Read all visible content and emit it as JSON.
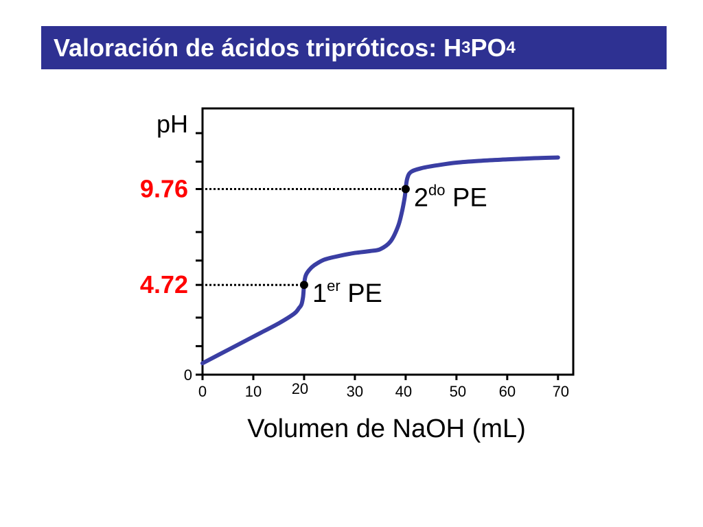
{
  "title": {
    "main": "Valoración de ácidos tripróticos: H",
    "sub1": "3",
    "mid": "PO",
    "sub2": "4"
  },
  "colors": {
    "banner": "#2e3192",
    "curve": "#3a3ea3",
    "highlight": "#ff0000",
    "axis": "#000000"
  },
  "chart_data": {
    "type": "line",
    "xlabel": "Volumen de NaOH (mL)",
    "ylabel": "pH",
    "xlim": [
      0,
      73
    ],
    "ylim": [
      0,
      14
    ],
    "x_ticks": [
      {
        "value": 0,
        "label": "0"
      },
      {
        "value": 10,
        "label": "10"
      },
      {
        "value": 20,
        "label": "20"
      },
      {
        "value": 30,
        "label": "30"
      },
      {
        "value": 40,
        "label": "40"
      },
      {
        "value": 50,
        "label": "50"
      },
      {
        "value": 60,
        "label": "60"
      },
      {
        "value": 70,
        "label": "70"
      }
    ],
    "y_tick_values": [
      0,
      1.5,
      3,
      4.72,
      6,
      7.5,
      9.76,
      11.2,
      12.7
    ],
    "y_zero_label": "0",
    "highlighted_y_labels": [
      {
        "value": 9.76,
        "label": "9.76"
      },
      {
        "value": 4.72,
        "label": "4.72"
      }
    ],
    "series": [
      {
        "x": [
          0,
          5,
          10,
          15,
          18,
          19,
          19.5,
          19.8,
          20,
          20.3,
          21,
          22,
          24,
          27,
          30,
          33,
          35,
          37,
          38.5,
          39.3,
          39.8,
          40,
          40.3,
          41,
          43,
          46,
          50,
          55,
          60,
          65,
          70
        ],
        "y": [
          0.6,
          1.3,
          2.0,
          2.7,
          3.2,
          3.5,
          3.7,
          4.1,
          4.72,
          5.2,
          5.5,
          5.75,
          6.05,
          6.25,
          6.4,
          6.5,
          6.6,
          7.0,
          7.8,
          8.6,
          9.3,
          9.76,
          10.3,
          10.65,
          10.85,
          11.0,
          11.15,
          11.25,
          11.32,
          11.38,
          11.42
        ]
      }
    ],
    "equivalence_points": [
      {
        "x": 20,
        "y": 4.72,
        "num": "1",
        "sup": "er",
        "text": "PE"
      },
      {
        "x": 40,
        "y": 9.76,
        "num": "2",
        "sup": "do",
        "text": "PE"
      }
    ]
  }
}
